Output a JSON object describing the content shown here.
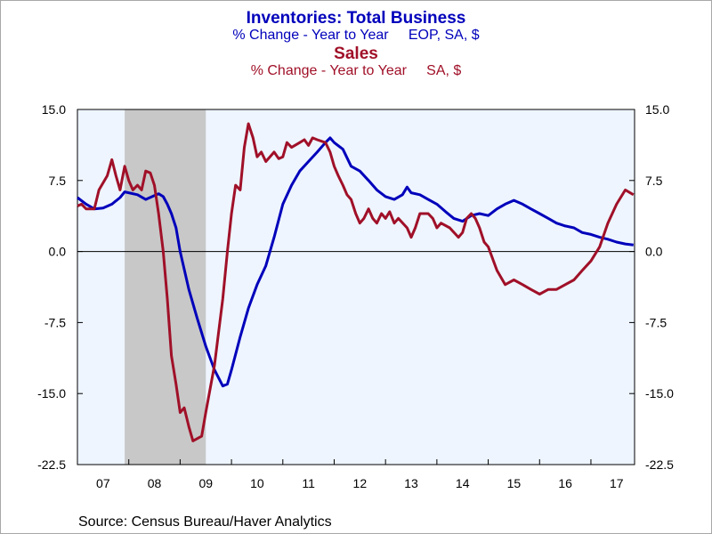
{
  "titles": [
    {
      "main": "Inventories: Total Business",
      "sub": "% Change - Year to Year     EOP, SA, $",
      "color": "#0000bb"
    },
    {
      "main": "Sales",
      "sub": "% Change - Year to Year     SA, $",
      "color": "#a01028"
    }
  ],
  "source": "Source:  Census Bureau/Haver Analytics",
  "chart_data": {
    "type": "line",
    "x_unit": "year",
    "xlim": [
      2007,
      2017.85
    ],
    "ylim": [
      -22.5,
      15.0
    ],
    "y_ticks": [
      15.0,
      7.5,
      0.0,
      -7.5,
      -15.0,
      -22.5
    ],
    "y_tick_labels": [
      "15.0",
      "7.5",
      "0.0",
      "-7.5",
      "-15.0",
      "-22.5"
    ],
    "x_tick_labels": [
      "07",
      "08",
      "09",
      "10",
      "11",
      "12",
      "13",
      "14",
      "15",
      "16",
      "17"
    ],
    "recession_shading": {
      "start": 2007.92,
      "end": 2009.5,
      "color": "#c8c8c8"
    },
    "plot_background": "#eef5ff",
    "zero_line": true,
    "series": [
      {
        "color": "#0000bb",
        "points": [
          [
            2007.0,
            5.7
          ],
          [
            2007.17,
            5.0
          ],
          [
            2007.33,
            4.5
          ],
          [
            2007.5,
            4.6
          ],
          [
            2007.67,
            5.0
          ],
          [
            2007.83,
            5.7
          ],
          [
            2007.92,
            6.3
          ],
          [
            2008.0,
            6.2
          ],
          [
            2008.17,
            6.0
          ],
          [
            2008.33,
            5.5
          ],
          [
            2008.5,
            5.9
          ],
          [
            2008.58,
            6.1
          ],
          [
            2008.67,
            5.8
          ],
          [
            2008.75,
            5.0
          ],
          [
            2008.83,
            4.0
          ],
          [
            2008.92,
            2.5
          ],
          [
            2009.0,
            0.0
          ],
          [
            2009.17,
            -4.0
          ],
          [
            2009.33,
            -7.0
          ],
          [
            2009.5,
            -10.0
          ],
          [
            2009.67,
            -12.5
          ],
          [
            2009.83,
            -14.2
          ],
          [
            2009.92,
            -14.0
          ],
          [
            2010.0,
            -12.5
          ],
          [
            2010.17,
            -9.0
          ],
          [
            2010.33,
            -6.0
          ],
          [
            2010.5,
            -3.5
          ],
          [
            2010.67,
            -1.5
          ],
          [
            2010.83,
            1.5
          ],
          [
            2011.0,
            5.0
          ],
          [
            2011.17,
            7.0
          ],
          [
            2011.33,
            8.5
          ],
          [
            2011.5,
            9.5
          ],
          [
            2011.67,
            10.5
          ],
          [
            2011.83,
            11.5
          ],
          [
            2011.92,
            12.0
          ],
          [
            2012.0,
            11.5
          ],
          [
            2012.17,
            10.8
          ],
          [
            2012.33,
            9.0
          ],
          [
            2012.5,
            8.5
          ],
          [
            2012.67,
            7.5
          ],
          [
            2012.83,
            6.5
          ],
          [
            2013.0,
            5.8
          ],
          [
            2013.17,
            5.5
          ],
          [
            2013.33,
            6.0
          ],
          [
            2013.42,
            6.8
          ],
          [
            2013.5,
            6.2
          ],
          [
            2013.67,
            6.0
          ],
          [
            2013.83,
            5.5
          ],
          [
            2014.0,
            5.0
          ],
          [
            2014.17,
            4.2
          ],
          [
            2014.33,
            3.5
          ],
          [
            2014.5,
            3.2
          ],
          [
            2014.67,
            3.8
          ],
          [
            2014.83,
            4.0
          ],
          [
            2015.0,
            3.8
          ],
          [
            2015.17,
            4.5
          ],
          [
            2015.33,
            5.0
          ],
          [
            2015.5,
            5.4
          ],
          [
            2015.67,
            5.0
          ],
          [
            2015.83,
            4.5
          ],
          [
            2016.0,
            4.0
          ],
          [
            2016.17,
            3.5
          ],
          [
            2016.33,
            3.0
          ],
          [
            2016.5,
            2.7
          ],
          [
            2016.67,
            2.5
          ],
          [
            2016.83,
            2.0
          ],
          [
            2017.0,
            1.8
          ],
          [
            2017.17,
            1.5
          ],
          [
            2017.33,
            1.3
          ],
          [
            2017.5,
            1.0
          ],
          [
            2017.67,
            0.8
          ],
          [
            2017.83,
            0.7
          ]
        ]
      },
      {
        "color": "#a01028",
        "points": [
          [
            2007.0,
            4.8
          ],
          [
            2007.08,
            5.0
          ],
          [
            2007.17,
            4.5
          ],
          [
            2007.33,
            4.5
          ],
          [
            2007.42,
            6.5
          ],
          [
            2007.58,
            8.0
          ],
          [
            2007.67,
            9.7
          ],
          [
            2007.75,
            8.0
          ],
          [
            2007.83,
            6.5
          ],
          [
            2007.92,
            9.0
          ],
          [
            2008.0,
            7.5
          ],
          [
            2008.08,
            6.5
          ],
          [
            2008.17,
            7.0
          ],
          [
            2008.25,
            6.5
          ],
          [
            2008.33,
            8.5
          ],
          [
            2008.42,
            8.3
          ],
          [
            2008.5,
            7.0
          ],
          [
            2008.58,
            4.0
          ],
          [
            2008.67,
            0.0
          ],
          [
            2008.75,
            -5.0
          ],
          [
            2008.83,
            -11.0
          ],
          [
            2008.92,
            -14.0
          ],
          [
            2009.0,
            -17.0
          ],
          [
            2009.08,
            -16.5
          ],
          [
            2009.17,
            -18.5
          ],
          [
            2009.25,
            -20.0
          ],
          [
            2009.42,
            -19.5
          ],
          [
            2009.5,
            -17.0
          ],
          [
            2009.67,
            -12.0
          ],
          [
            2009.83,
            -5.0
          ],
          [
            2009.92,
            0.0
          ],
          [
            2010.0,
            4.0
          ],
          [
            2010.08,
            7.0
          ],
          [
            2010.17,
            6.5
          ],
          [
            2010.25,
            11.0
          ],
          [
            2010.33,
            13.5
          ],
          [
            2010.42,
            12.0
          ],
          [
            2010.5,
            10.0
          ],
          [
            2010.58,
            10.5
          ],
          [
            2010.67,
            9.5
          ],
          [
            2010.83,
            10.5
          ],
          [
            2010.92,
            9.8
          ],
          [
            2011.0,
            10.0
          ],
          [
            2011.08,
            11.5
          ],
          [
            2011.17,
            11.0
          ],
          [
            2011.33,
            11.5
          ],
          [
            2011.42,
            11.8
          ],
          [
            2011.5,
            11.2
          ],
          [
            2011.58,
            12.0
          ],
          [
            2011.67,
            11.8
          ],
          [
            2011.83,
            11.5
          ],
          [
            2011.92,
            10.5
          ],
          [
            2012.0,
            9.0
          ],
          [
            2012.08,
            8.0
          ],
          [
            2012.17,
            7.0
          ],
          [
            2012.25,
            6.0
          ],
          [
            2012.33,
            5.5
          ],
          [
            2012.42,
            4.0
          ],
          [
            2012.5,
            3.0
          ],
          [
            2012.58,
            3.5
          ],
          [
            2012.67,
            4.5
          ],
          [
            2012.75,
            3.5
          ],
          [
            2012.83,
            3.0
          ],
          [
            2012.92,
            4.0
          ],
          [
            2013.0,
            3.5
          ],
          [
            2013.08,
            4.2
          ],
          [
            2013.17,
            3.0
          ],
          [
            2013.25,
            3.5
          ],
          [
            2013.42,
            2.5
          ],
          [
            2013.5,
            1.5
          ],
          [
            2013.58,
            2.5
          ],
          [
            2013.67,
            4.0
          ],
          [
            2013.83,
            4.0
          ],
          [
            2013.92,
            3.5
          ],
          [
            2014.0,
            2.5
          ],
          [
            2014.08,
            3.0
          ],
          [
            2014.25,
            2.5
          ],
          [
            2014.42,
            1.5
          ],
          [
            2014.5,
            2.0
          ],
          [
            2014.58,
            3.5
          ],
          [
            2014.67,
            4.0
          ],
          [
            2014.75,
            3.5
          ],
          [
            2014.83,
            2.5
          ],
          [
            2014.92,
            1.0
          ],
          [
            2015.0,
            0.5
          ],
          [
            2015.17,
            -2.0
          ],
          [
            2015.33,
            -3.5
          ],
          [
            2015.5,
            -3.0
          ],
          [
            2015.67,
            -3.5
          ],
          [
            2015.83,
            -4.0
          ],
          [
            2016.0,
            -4.5
          ],
          [
            2016.17,
            -4.0
          ],
          [
            2016.33,
            -4.0
          ],
          [
            2016.5,
            -3.5
          ],
          [
            2016.67,
            -3.0
          ],
          [
            2016.83,
            -2.0
          ],
          [
            2017.0,
            -1.0
          ],
          [
            2017.17,
            0.5
          ],
          [
            2017.33,
            3.0
          ],
          [
            2017.5,
            5.0
          ],
          [
            2017.67,
            6.5
          ],
          [
            2017.83,
            6.0
          ]
        ]
      }
    ]
  }
}
